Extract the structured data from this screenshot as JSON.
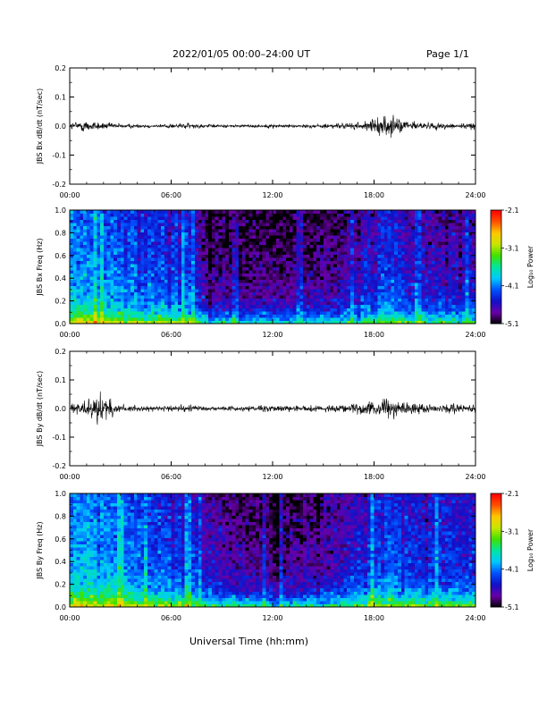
{
  "header": {
    "title": "2022/01/05  00:00–24:00 UT",
    "page": "Page 1/1"
  },
  "x_axis_title": "Universal Time (hh:mm)",
  "colors": {
    "trace": "#000000",
    "colormap": [
      "#000000",
      "#6a00a8",
      "#1010c8",
      "#0050ff",
      "#00c8ff",
      "#00e6a0",
      "#40e000",
      "#c8e600",
      "#ffc800",
      "#ff5000",
      "#ff0000"
    ]
  },
  "chart_data": [
    {
      "type": "line",
      "ylabel": "JBS Bx dB/dt (nT/sec)",
      "xlim": [
        0,
        24
      ],
      "ylim": [
        -0.2,
        0.2
      ],
      "xticks": [
        "00:00",
        "06:00",
        "12:00",
        "18:00",
        "24:00"
      ],
      "yticks": [
        "-0.2",
        "-0.1",
        "0.0",
        "0.1",
        "0.2"
      ],
      "series": [
        {
          "x": [
            0,
            1,
            2,
            3,
            4,
            5,
            6,
            7,
            8,
            9,
            10,
            11,
            12,
            13,
            14,
            15,
            16,
            17,
            18,
            18.5,
            19,
            19.5,
            20,
            21,
            22,
            23,
            24
          ],
          "amplitude": [
            0.012,
            0.02,
            0.012,
            0.008,
            0.006,
            0.006,
            0.008,
            0.01,
            0.006,
            0.005,
            0.005,
            0.005,
            0.006,
            0.006,
            0.006,
            0.007,
            0.009,
            0.012,
            0.02,
            0.03,
            0.035,
            0.025,
            0.018,
            0.012,
            0.01,
            0.01,
            0.01
          ]
        }
      ]
    },
    {
      "type": "heatmap",
      "ylabel": "JBS Bx Freq (Hz)",
      "xlim": [
        0,
        24
      ],
      "ylim": [
        0,
        1.0
      ],
      "xticks": [
        "00:00",
        "06:00",
        "12:00",
        "18:00",
        "24:00"
      ],
      "yticks": [
        "0.0",
        "0.2",
        "0.4",
        "0.6",
        "0.8",
        "1.0"
      ],
      "colorbar": {
        "label": "Log₁₀ Power",
        "ticks": [
          "-2.1",
          "-3.1",
          "-4.1",
          "-5.1"
        ],
        "range": [
          -5.1,
          -2.1
        ]
      },
      "x": [
        0,
        2,
        4,
        6,
        7,
        8,
        10,
        12,
        14,
        16,
        18,
        19,
        20,
        22,
        24
      ],
      "level": [
        -3.9,
        -4.0,
        -4.1,
        -4.2,
        -4.2,
        -4.7,
        -4.8,
        -4.8,
        -4.75,
        -4.7,
        -4.3,
        -4.2,
        -4.5,
        -4.5,
        -4.5
      ]
    },
    {
      "type": "line",
      "ylabel": "JBS By dB/dt (nT/sec)",
      "xlim": [
        0,
        24
      ],
      "ylim": [
        -0.2,
        0.2
      ],
      "xticks": [
        "00:00",
        "06:00",
        "12:00",
        "18:00",
        "24:00"
      ],
      "yticks": [
        "-0.2",
        "-0.1",
        "0.0",
        "0.1",
        "0.2"
      ],
      "series": [
        {
          "x": [
            0,
            1,
            1.5,
            2,
            3,
            4,
            5,
            6,
            7,
            8,
            9,
            10,
            11,
            12,
            13,
            14,
            15,
            16,
            17,
            18,
            18.5,
            19,
            19.5,
            20,
            21,
            22,
            23,
            24
          ],
          "amplitude": [
            0.025,
            0.03,
            0.045,
            0.04,
            0.015,
            0.01,
            0.008,
            0.01,
            0.012,
            0.008,
            0.007,
            0.008,
            0.01,
            0.01,
            0.01,
            0.01,
            0.01,
            0.012,
            0.018,
            0.025,
            0.035,
            0.04,
            0.03,
            0.02,
            0.018,
            0.015,
            0.015,
            0.015
          ]
        }
      ]
    },
    {
      "type": "heatmap",
      "ylabel": "JBS By Freq (Hz)",
      "xlim": [
        0,
        24
      ],
      "ylim": [
        0,
        1.0
      ],
      "xticks": [
        "00:00",
        "06:00",
        "12:00",
        "18:00",
        "24:00"
      ],
      "yticks": [
        "0.0",
        "0.2",
        "0.4",
        "0.6",
        "0.8",
        "1.0"
      ],
      "colorbar": {
        "label": "Log₁₀ Power",
        "ticks": [
          "-2.1",
          "-3.1",
          "-4.1",
          "-5.1"
        ],
        "range": [
          -5.1,
          -2.1
        ]
      },
      "x": [
        0,
        2,
        4,
        6,
        7,
        8,
        10,
        12,
        14,
        16,
        18,
        19,
        20,
        22,
        24
      ],
      "level": [
        -3.8,
        -3.9,
        -4.1,
        -4.2,
        -4.2,
        -4.5,
        -4.7,
        -4.75,
        -4.7,
        -4.55,
        -4.2,
        -4.1,
        -4.3,
        -4.3,
        -4.35
      ]
    }
  ]
}
